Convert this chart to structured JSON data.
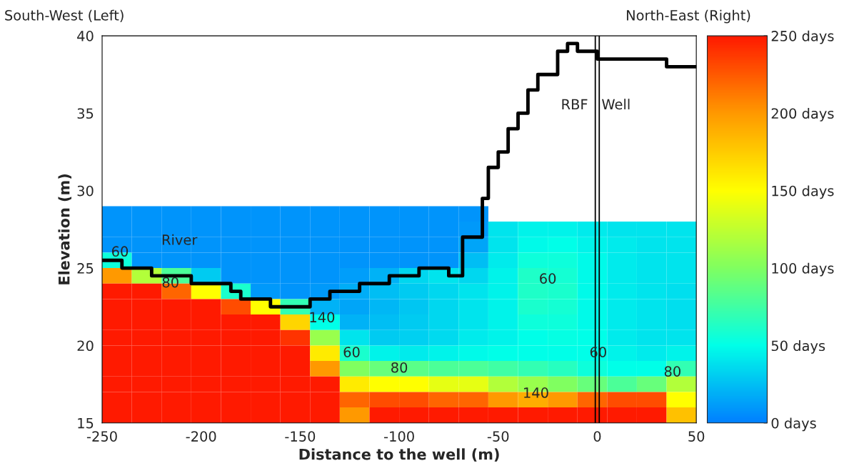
{
  "chart_data": {
    "type": "heatmap",
    "xlabel": "Distance to the well (m)",
    "ylabel": "Elevation (m)",
    "x": [
      -242.5,
      -227.5,
      -212.5,
      -197.5,
      -182.5,
      -167.5,
      -152.5,
      -137.5,
      -122.5,
      -107.5,
      -92.5,
      -77.5,
      -62.5,
      -47.5,
      -32.5,
      -17.5,
      -2.5,
      12.5,
      27.5,
      42.5
    ],
    "y": [
      28.5,
      27.5,
      26.5,
      25.5,
      24.5,
      23.5,
      22.5,
      21.5,
      20.5,
      19.5,
      18.5,
      17.5,
      16.5,
      15.5
    ],
    "cells": [
      [
        8,
        8,
        8,
        8,
        8,
        8,
        8,
        8,
        8,
        8,
        8,
        8,
        8,
        null,
        null,
        null,
        null,
        null,
        null,
        null
      ],
      [
        8,
        8,
        8,
        8,
        8,
        8,
        8,
        8,
        8,
        8,
        8,
        8,
        10,
        40,
        45,
        45,
        42,
        40,
        40,
        40
      ],
      [
        8,
        8,
        8,
        8,
        8,
        8,
        8,
        8,
        8,
        8,
        8,
        8,
        15,
        40,
        48,
        50,
        45,
        42,
        40,
        40
      ],
      [
        55,
        8,
        8,
        8,
        8,
        8,
        8,
        8,
        8,
        8,
        8,
        8,
        25,
        42,
        55,
        55,
        48,
        42,
        40,
        40
      ],
      [
        200,
        120,
        80,
        30,
        8,
        8,
        8,
        8,
        12,
        20,
        35,
        40,
        35,
        45,
        62,
        58,
        48,
        42,
        40,
        40
      ],
      [
        250,
        250,
        220,
        150,
        60,
        10,
        8,
        10,
        18,
        25,
        30,
        35,
        40,
        45,
        62,
        60,
        48,
        42,
        40,
        38
      ],
      [
        250,
        250,
        250,
        250,
        230,
        150,
        70,
        20,
        15,
        22,
        28,
        35,
        40,
        45,
        60,
        58,
        48,
        42,
        40,
        38
      ],
      [
        250,
        250,
        250,
        250,
        250,
        250,
        170,
        50,
        20,
        25,
        30,
        35,
        40,
        45,
        55,
        55,
        48,
        42,
        40,
        38
      ],
      [
        250,
        250,
        250,
        250,
        250,
        250,
        240,
        110,
        40,
        30,
        32,
        36,
        42,
        45,
        50,
        52,
        50,
        42,
        40,
        40
      ],
      [
        250,
        250,
        250,
        250,
        250,
        250,
        250,
        160,
        60,
        45,
        42,
        45,
        48,
        50,
        50,
        50,
        50,
        45,
        42,
        45
      ],
      [
        250,
        250,
        250,
        250,
        250,
        250,
        250,
        200,
        100,
        90,
        85,
        80,
        80,
        75,
        70,
        65,
        55,
        50,
        50,
        70
      ],
      [
        250,
        250,
        250,
        250,
        250,
        250,
        250,
        250,
        160,
        150,
        150,
        140,
        140,
        120,
        110,
        100,
        90,
        80,
        90,
        120
      ],
      [
        250,
        250,
        250,
        250,
        250,
        250,
        250,
        250,
        220,
        230,
        230,
        220,
        220,
        200,
        190,
        200,
        220,
        230,
        230,
        150
      ],
      [
        250,
        250,
        250,
        250,
        250,
        250,
        250,
        250,
        200,
        250,
        250,
        250,
        250,
        250,
        250,
        250,
        250,
        250,
        250,
        180
      ]
    ],
    "clim": [
      0,
      250
    ],
    "cticks": [
      {
        "value": 0,
        "label": "0 days"
      },
      {
        "value": 50,
        "label": "50 days"
      },
      {
        "value": 100,
        "label": "100 days"
      },
      {
        "value": 150,
        "label": "150 days"
      },
      {
        "value": 200,
        "label": "200 days"
      },
      {
        "value": 250,
        "label": "250 days"
      }
    ],
    "xlim": [
      -250,
      50
    ],
    "ylim": [
      15,
      40
    ],
    "xticks": [
      -250,
      -200,
      -150,
      -100,
      -50,
      0,
      50
    ],
    "yticks": [
      15,
      20,
      25,
      30,
      35,
      40
    ],
    "series": [
      {
        "type": "step",
        "color": "#000000",
        "x": [
          -250,
          -240,
          -225,
          -205,
          -185,
          -180,
          -165,
          -145,
          -135,
          -120,
          -105,
          -90,
          -75,
          -68,
          -58,
          -55,
          -50,
          -45,
          -40,
          -35,
          -30,
          -20,
          -15,
          -10,
          0,
          35,
          50
        ],
        "values": [
          25.5,
          25,
          24.5,
          24,
          23.5,
          23,
          22.5,
          23,
          23.5,
          24,
          24.5,
          25,
          24.5,
          27,
          29.5,
          31.5,
          32.5,
          34,
          35,
          36.5,
          37.5,
          39,
          39.5,
          39,
          38.5,
          38,
          38
        ]
      }
    ],
    "ref_lines": [
      {
        "axis": "x",
        "value": -1,
        "color": "#000000"
      },
      {
        "axis": "x",
        "value": 1,
        "color": "#000000"
      }
    ],
    "grid": false,
    "annotations": [
      "South-West (Left)",
      "North-East (Right)",
      "River",
      "RBF",
      "Well",
      "60",
      "80",
      "140",
      "60",
      "80",
      "60",
      "60",
      "140",
      "80"
    ]
  }
}
